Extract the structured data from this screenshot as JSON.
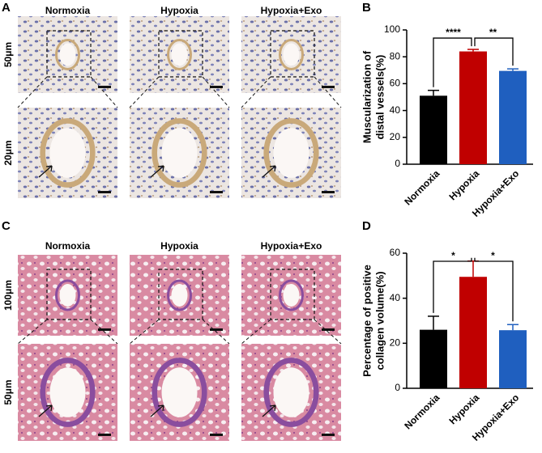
{
  "panel_labels": [
    "A",
    "B",
    "C",
    "D"
  ],
  "image_panels": [
    {
      "columns": [
        "Normoxia",
        "Hypoxia",
        "Hypoxia+Exo"
      ],
      "rows": [
        "50μm",
        "20μm"
      ]
    },
    {
      "columns": [
        "Normoxia",
        "Hypoxia",
        "Hypoxia+Exo"
      ],
      "rows": [
        "100μm",
        "50μm"
      ]
    }
  ],
  "chart_data": [
    {
      "type": "bar",
      "ylabel": [
        "Muscularization of",
        "distal vessels(%)"
      ],
      "categories": [
        "Normoxia",
        "Hypoxia",
        "Hypoxia+Exo"
      ],
      "values": [
        51,
        84,
        69.5
      ],
      "errors": [
        4,
        1.5,
        1.5
      ],
      "colors": [
        "#000000",
        "#c00000",
        "#1f5fbf"
      ],
      "ylim": [
        0,
        100
      ],
      "yticks": [
        0,
        20,
        40,
        60,
        80,
        100
      ],
      "significance": [
        {
          "label": "****",
          "between": [
            "Normoxia",
            "Hypoxia"
          ]
        },
        {
          "label": "**",
          "between": [
            "Hypoxia",
            "Hypoxia+Exo"
          ]
        }
      ]
    },
    {
      "type": "bar",
      "ylabel": [
        "Percentage of positive",
        "collagen volume(%)"
      ],
      "categories": [
        "Normoxia",
        "Hypoxia",
        "Hypoxia+Exo"
      ],
      "values": [
        26,
        49.5,
        25.8
      ],
      "errors": [
        6,
        7,
        2.5
      ],
      "colors": [
        "#000000",
        "#c00000",
        "#1f5fbf"
      ],
      "ylim": [
        0,
        60
      ],
      "yticks": [
        0,
        20,
        40,
        60
      ],
      "significance": [
        {
          "label": "*",
          "between": [
            "Normoxia",
            "Hypoxia"
          ]
        },
        {
          "label": "*",
          "between": [
            "Hypoxia",
            "Hypoxia+Exo"
          ]
        }
      ]
    }
  ]
}
